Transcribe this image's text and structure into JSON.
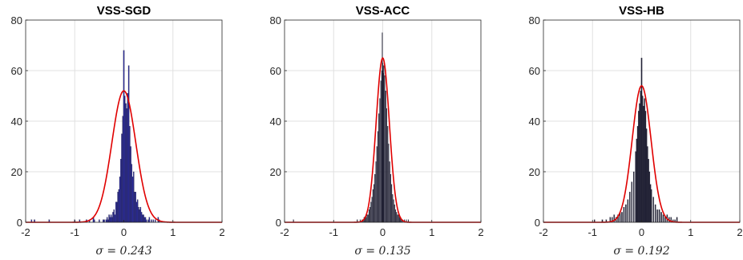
{
  "chart_data": [
    {
      "type": "bar",
      "title": "VSS-SGD",
      "xlabel": "σ = 0.243",
      "sigma": 0.243,
      "xlim": [
        -2,
        2
      ],
      "ylim": [
        0,
        80
      ],
      "xticks": [
        -2,
        -1,
        0,
        1,
        2
      ],
      "yticks": [
        0,
        20,
        40,
        60,
        80
      ],
      "grid": true,
      "bar_color": "#2b2b9c",
      "fit_color": "#e00000",
      "fit_peak": 52,
      "bin_width": 0.02,
      "bins": [
        {
          "x": -1.88,
          "v": 1
        },
        {
          "x": -1.82,
          "v": 1
        },
        {
          "x": -1.52,
          "v": 1
        },
        {
          "x": -1.0,
          "v": 1
        },
        {
          "x": -0.9,
          "v": 1
        },
        {
          "x": -0.76,
          "v": 1
        },
        {
          "x": -0.7,
          "v": 1
        },
        {
          "x": -0.62,
          "v": 2
        },
        {
          "x": -0.6,
          "v": 1
        },
        {
          "x": -0.5,
          "v": 1
        },
        {
          "x": -0.42,
          "v": 1
        },
        {
          "x": -0.4,
          "v": 1
        },
        {
          "x": -0.36,
          "v": 1
        },
        {
          "x": -0.34,
          "v": 2
        },
        {
          "x": -0.32,
          "v": 1
        },
        {
          "x": -0.3,
          "v": 3
        },
        {
          "x": -0.28,
          "v": 2
        },
        {
          "x": -0.26,
          "v": 3
        },
        {
          "x": -0.24,
          "v": 2
        },
        {
          "x": -0.22,
          "v": 4
        },
        {
          "x": -0.2,
          "v": 5
        },
        {
          "x": -0.18,
          "v": 3
        },
        {
          "x": -0.16,
          "v": 8
        },
        {
          "x": -0.14,
          "v": 8
        },
        {
          "x": -0.12,
          "v": 12
        },
        {
          "x": -0.1,
          "v": 13
        },
        {
          "x": -0.08,
          "v": 18
        },
        {
          "x": -0.06,
          "v": 25
        },
        {
          "x": -0.04,
          "v": 35
        },
        {
          "x": -0.02,
          "v": 42
        },
        {
          "x": 0.0,
          "v": 68
        },
        {
          "x": 0.02,
          "v": 50
        },
        {
          "x": 0.04,
          "v": 47
        },
        {
          "x": 0.06,
          "v": 45
        },
        {
          "x": 0.08,
          "v": 51
        },
        {
          "x": 0.1,
          "v": 62
        },
        {
          "x": 0.12,
          "v": 38
        },
        {
          "x": 0.14,
          "v": 30
        },
        {
          "x": 0.16,
          "v": 23
        },
        {
          "x": 0.18,
          "v": 18
        },
        {
          "x": 0.2,
          "v": 20
        },
        {
          "x": 0.22,
          "v": 12
        },
        {
          "x": 0.24,
          "v": 12
        },
        {
          "x": 0.26,
          "v": 8
        },
        {
          "x": 0.28,
          "v": 9
        },
        {
          "x": 0.3,
          "v": 6
        },
        {
          "x": 0.32,
          "v": 5
        },
        {
          "x": 0.34,
          "v": 6
        },
        {
          "x": 0.36,
          "v": 4
        },
        {
          "x": 0.38,
          "v": 3
        },
        {
          "x": 0.4,
          "v": 3
        },
        {
          "x": 0.42,
          "v": 2
        },
        {
          "x": 0.44,
          "v": 2
        },
        {
          "x": 0.46,
          "v": 1
        },
        {
          "x": 0.5,
          "v": 1
        },
        {
          "x": 0.52,
          "v": 2
        },
        {
          "x": 0.56,
          "v": 1
        },
        {
          "x": 0.6,
          "v": 1
        },
        {
          "x": 0.64,
          "v": 1
        },
        {
          "x": 0.7,
          "v": 2
        },
        {
          "x": 0.72,
          "v": 1
        }
      ]
    },
    {
      "type": "bar",
      "title": "VSS-ACC",
      "xlabel": "σ = 0.135",
      "sigma": 0.135,
      "xlim": [
        -2,
        2
      ],
      "ylim": [
        0,
        80
      ],
      "xticks": [
        -2,
        -1,
        0,
        1,
        2
      ],
      "yticks": [
        0,
        20,
        40,
        60,
        80
      ],
      "grid": true,
      "bar_color": "#232336",
      "fit_color": "#e00000",
      "fit_peak": 65,
      "bin_width": 0.01,
      "bins": [
        {
          "x": -1.82,
          "v": 1
        },
        {
          "x": -0.52,
          "v": 1
        },
        {
          "x": -0.46,
          "v": 1
        },
        {
          "x": -0.42,
          "v": 1
        },
        {
          "x": -0.4,
          "v": 1
        },
        {
          "x": -0.38,
          "v": 2
        },
        {
          "x": -0.36,
          "v": 2
        },
        {
          "x": -0.34,
          "v": 2
        },
        {
          "x": -0.32,
          "v": 3
        },
        {
          "x": -0.3,
          "v": 3
        },
        {
          "x": -0.28,
          "v": 5
        },
        {
          "x": -0.26,
          "v": 6
        },
        {
          "x": -0.24,
          "v": 8
        },
        {
          "x": -0.22,
          "v": 10
        },
        {
          "x": -0.2,
          "v": 13
        },
        {
          "x": -0.18,
          "v": 15
        },
        {
          "x": -0.16,
          "v": 19
        },
        {
          "x": -0.14,
          "v": 24
        },
        {
          "x": -0.12,
          "v": 30
        },
        {
          "x": -0.1,
          "v": 36
        },
        {
          "x": -0.08,
          "v": 43
        },
        {
          "x": -0.06,
          "v": 49
        },
        {
          "x": -0.04,
          "v": 56
        },
        {
          "x": -0.02,
          "v": 60
        },
        {
          "x": -0.01,
          "v": 75
        },
        {
          "x": 0.0,
          "v": 63
        },
        {
          "x": 0.01,
          "v": 59
        },
        {
          "x": 0.02,
          "v": 62
        },
        {
          "x": 0.04,
          "v": 58
        },
        {
          "x": 0.06,
          "v": 52
        },
        {
          "x": 0.08,
          "v": 45
        },
        {
          "x": 0.1,
          "v": 38
        },
        {
          "x": 0.12,
          "v": 31
        },
        {
          "x": 0.14,
          "v": 24
        },
        {
          "x": 0.16,
          "v": 19
        },
        {
          "x": 0.18,
          "v": 15
        },
        {
          "x": 0.2,
          "v": 11
        },
        {
          "x": 0.22,
          "v": 9
        },
        {
          "x": 0.24,
          "v": 7
        },
        {
          "x": 0.26,
          "v": 5
        },
        {
          "x": 0.28,
          "v": 4
        },
        {
          "x": 0.3,
          "v": 3
        },
        {
          "x": 0.32,
          "v": 3
        },
        {
          "x": 0.34,
          "v": 2
        },
        {
          "x": 0.36,
          "v": 2
        },
        {
          "x": 0.38,
          "v": 1
        },
        {
          "x": 0.4,
          "v": 1
        },
        {
          "x": 0.44,
          "v": 1
        },
        {
          "x": 0.48,
          "v": 1
        },
        {
          "x": 0.52,
          "v": 1
        }
      ]
    },
    {
      "type": "bar",
      "title": "VSS-HB",
      "xlabel": "σ = 0.192",
      "sigma": 0.192,
      "xlim": [
        -2,
        2
      ],
      "ylim": [
        0,
        80
      ],
      "xticks": [
        -2,
        -1,
        0,
        1,
        2
      ],
      "yticks": [
        0,
        20,
        40,
        60,
        80
      ],
      "grid": true,
      "bar_color": "#232336",
      "fit_color": "#e00000",
      "fit_peak": 54,
      "bin_width": 0.02,
      "bins": [
        {
          "x": -0.96,
          "v": 1
        },
        {
          "x": -0.8,
          "v": 1
        },
        {
          "x": -0.72,
          "v": 1
        },
        {
          "x": -0.64,
          "v": 2
        },
        {
          "x": -0.6,
          "v": 2
        },
        {
          "x": -0.56,
          "v": 3
        },
        {
          "x": -0.52,
          "v": 2
        },
        {
          "x": -0.48,
          "v": 3
        },
        {
          "x": -0.44,
          "v": 4
        },
        {
          "x": -0.4,
          "v": 4
        },
        {
          "x": -0.36,
          "v": 6
        },
        {
          "x": -0.32,
          "v": 7
        },
        {
          "x": -0.28,
          "v": 9
        },
        {
          "x": -0.24,
          "v": 12
        },
        {
          "x": -0.2,
          "v": 16
        },
        {
          "x": -0.16,
          "v": 20
        },
        {
          "x": -0.12,
          "v": 28
        },
        {
          "x": -0.1,
          "v": 33
        },
        {
          "x": -0.08,
          "v": 38
        },
        {
          "x": -0.06,
          "v": 44
        },
        {
          "x": -0.04,
          "v": 47
        },
        {
          "x": -0.02,
          "v": 52
        },
        {
          "x": 0.0,
          "v": 65
        },
        {
          "x": 0.02,
          "v": 50
        },
        {
          "x": 0.04,
          "v": 46
        },
        {
          "x": 0.06,
          "v": 49
        },
        {
          "x": 0.08,
          "v": 44
        },
        {
          "x": 0.1,
          "v": 37
        },
        {
          "x": 0.12,
          "v": 30
        },
        {
          "x": 0.14,
          "v": 25
        },
        {
          "x": 0.16,
          "v": 20
        },
        {
          "x": 0.18,
          "v": 15
        },
        {
          "x": 0.2,
          "v": 13
        },
        {
          "x": 0.24,
          "v": 10
        },
        {
          "x": 0.28,
          "v": 7
        },
        {
          "x": 0.32,
          "v": 5
        },
        {
          "x": 0.36,
          "v": 5
        },
        {
          "x": 0.4,
          "v": 4
        },
        {
          "x": 0.44,
          "v": 3
        },
        {
          "x": 0.48,
          "v": 2
        },
        {
          "x": 0.52,
          "v": 3
        },
        {
          "x": 0.56,
          "v": 2
        },
        {
          "x": 0.6,
          "v": 2
        },
        {
          "x": 0.64,
          "v": 1
        },
        {
          "x": 0.68,
          "v": 1
        },
        {
          "x": 0.72,
          "v": 2
        }
      ]
    }
  ]
}
